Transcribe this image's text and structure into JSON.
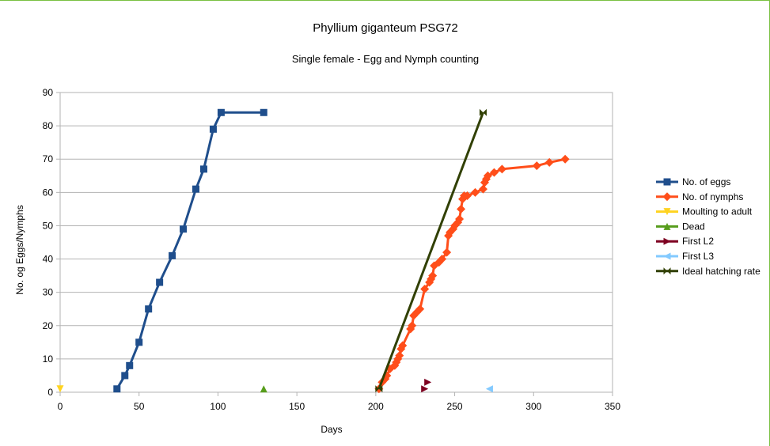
{
  "chart_data": {
    "type": "line",
    "title": "Phyllium giganteum PSG72",
    "subtitle": "Single female - Egg and Nymph counting",
    "xlabel": "Days",
    "ylabel": "No. og Eggs/Nymphs",
    "xlim": [
      0,
      350
    ],
    "ylim": [
      0,
      90
    ],
    "xticks": [
      0,
      50,
      100,
      150,
      200,
      250,
      300,
      350
    ],
    "yticks": [
      0,
      10,
      20,
      30,
      40,
      50,
      60,
      70,
      80,
      90
    ],
    "grid": "horizontal",
    "legend": "right",
    "series": [
      {
        "name": "No. of eggs",
        "color": "#1f4e8c",
        "marker": "square",
        "line": true,
        "x": [
          36,
          41,
          44,
          50,
          56,
          63,
          71,
          78,
          86,
          91,
          97,
          102,
          129
        ],
        "y": [
          1,
          5,
          8,
          15,
          25,
          33,
          41,
          49,
          61,
          67,
          79,
          84,
          84
        ]
      },
      {
        "name": "No. of nymphs",
        "color": "#ff4e1a",
        "marker": "diamond",
        "line": true,
        "x": [
          202,
          204,
          206,
          207,
          209,
          212,
          213,
          214,
          215,
          216,
          217,
          222,
          223,
          224,
          226,
          228,
          231,
          234,
          235,
          236,
          237,
          240,
          242,
          245,
          246,
          247,
          249,
          250,
          252,
          253,
          254,
          255,
          256,
          258,
          263,
          268,
          269,
          270,
          271,
          275,
          280,
          302,
          310,
          320
        ],
        "y": [
          1,
          3,
          4,
          5,
          7,
          8,
          9,
          10,
          11,
          13,
          14,
          19,
          20,
          23,
          24,
          25,
          31,
          33,
          34,
          35,
          38,
          39,
          40,
          42,
          47,
          48,
          49,
          50,
          51,
          52,
          55,
          58,
          59,
          59,
          60,
          61,
          63,
          64,
          65,
          66,
          67,
          68,
          69,
          70
        ]
      },
      {
        "name": "Moulting to adult",
        "color": "#ffd320",
        "marker": "triangle-down",
        "line": false,
        "x": [
          0
        ],
        "y": [
          1
        ]
      },
      {
        "name": "Dead",
        "color": "#579d1c",
        "marker": "triangle-up",
        "line": false,
        "x": [
          129
        ],
        "y": [
          1
        ]
      },
      {
        "name": "First L2",
        "color": "#7e0021",
        "marker": "triangle-right",
        "line": false,
        "x": [
          231,
          233
        ],
        "y": [
          1,
          3
        ]
      },
      {
        "name": "First L3",
        "color": "#83caff",
        "marker": "triangle-left",
        "line": false,
        "x": [
          272
        ],
        "y": [
          1
        ]
      },
      {
        "name": "Ideal hatching rate",
        "color": "#314004",
        "marker": "bowtie",
        "line": true,
        "x": [
          202,
          268
        ],
        "y": [
          1,
          84
        ]
      }
    ]
  }
}
